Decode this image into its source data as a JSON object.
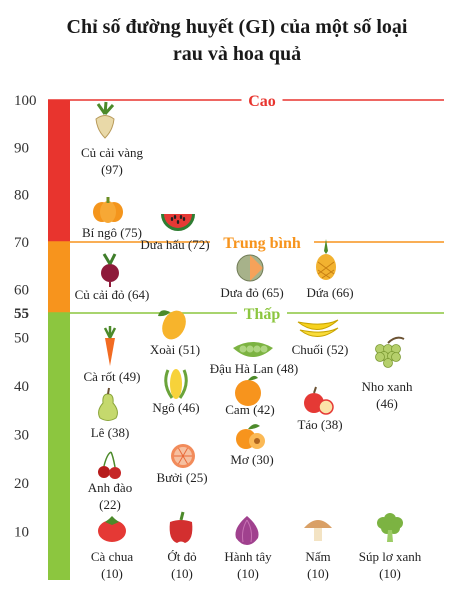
{
  "title_line1": "Chỉ số đường huyết (GI) của một số loại",
  "title_line2": "rau và hoa quả",
  "chart_data": {
    "type": "scatter",
    "title": "Chỉ số đường huyết (GI) của một số loại rau và hoa quả",
    "ylim": [
      0,
      100
    ],
    "yticks": [
      10,
      20,
      30,
      40,
      50,
      55,
      60,
      70,
      80,
      90,
      100
    ],
    "zones": [
      {
        "name": "Cao",
        "min": 70,
        "max": 100,
        "color": "#e8342e"
      },
      {
        "name": "Trung bình",
        "min": 55,
        "max": 70,
        "color": "#f7941d"
      },
      {
        "name": "Thấp",
        "min": 0,
        "max": 55,
        "color": "#8cc63f"
      }
    ],
    "items": [
      {
        "name": "Củ cải vàng",
        "gi": 97,
        "label": "Củ cải vàng",
        "value_text": "(97)",
        "icon": "parsnip-icon"
      },
      {
        "name": "Bí ngô",
        "gi": 75,
        "label": "Bí ngô (75)",
        "icon": "pumpkin-icon"
      },
      {
        "name": "Dưa hấu",
        "gi": 72,
        "label": "Dưa hấu (72)",
        "icon": "watermelon-icon"
      },
      {
        "name": "Củ cải đỏ",
        "gi": 64,
        "label": "Củ cải đỏ (64)",
        "icon": "beetroot-icon"
      },
      {
        "name": "Dưa đỏ",
        "gi": 65,
        "label": "Dưa đỏ (65)",
        "icon": "melon-icon"
      },
      {
        "name": "Dứa",
        "gi": 66,
        "label": "Dứa (66)",
        "icon": "pineapple-icon"
      },
      {
        "name": "Xoài",
        "gi": 51,
        "label": "Xoài (51)",
        "icon": "mango-icon"
      },
      {
        "name": "Chuối",
        "gi": 52,
        "label": "Chuối (52)",
        "icon": "banana-icon"
      },
      {
        "name": "Đậu Hà Lan",
        "gi": 48,
        "label": "Đậu Hà Lan (48)",
        "icon": "peas-icon"
      },
      {
        "name": "Cà rốt",
        "gi": 49,
        "label": "Cà rốt (49)",
        "icon": "carrot-icon"
      },
      {
        "name": "Nho xanh",
        "gi": 46,
        "label": "Nho xanh",
        "value_text": "(46)",
        "icon": "grapes-icon"
      },
      {
        "name": "Ngô",
        "gi": 46,
        "label": "Ngô (46)",
        "icon": "corn-icon"
      },
      {
        "name": "Cam",
        "gi": 42,
        "label": "Cam (42)",
        "icon": "orange-icon"
      },
      {
        "name": "Táo",
        "gi": 38,
        "label": "Táo (38)",
        "icon": "apple-icon"
      },
      {
        "name": "Lê",
        "gi": 38,
        "label": "Lê (38)",
        "icon": "pear-icon"
      },
      {
        "name": "Mơ",
        "gi": 30,
        "label": "Mơ (30)",
        "icon": "apricot-icon"
      },
      {
        "name": "Bưởi",
        "gi": 25,
        "label": "Bưởi (25)",
        "icon": "grapefruit-icon"
      },
      {
        "name": "Anh đào",
        "gi": 22,
        "label": "Anh đào",
        "value_text": "(22)",
        "icon": "cherry-icon"
      },
      {
        "name": "Cà chua",
        "gi": 10,
        "label": "Cà chua",
        "value_text": "(10)",
        "icon": "tomato-icon"
      },
      {
        "name": "Ớt đỏ",
        "gi": 10,
        "label": "Ớt đỏ",
        "value_text": "(10)",
        "icon": "pepper-icon"
      },
      {
        "name": "Hành tây",
        "gi": 10,
        "label": "Hành tây",
        "value_text": "(10)",
        "icon": "onion-icon"
      },
      {
        "name": "Nấm",
        "gi": 10,
        "label": "Nấm",
        "value_text": "(10)",
        "icon": "mushroom-icon"
      },
      {
        "name": "Súp lơ xanh",
        "gi": 10,
        "label": "Súp lơ xanh",
        "value_text": "(10)",
        "icon": "broccoli-icon"
      }
    ]
  }
}
